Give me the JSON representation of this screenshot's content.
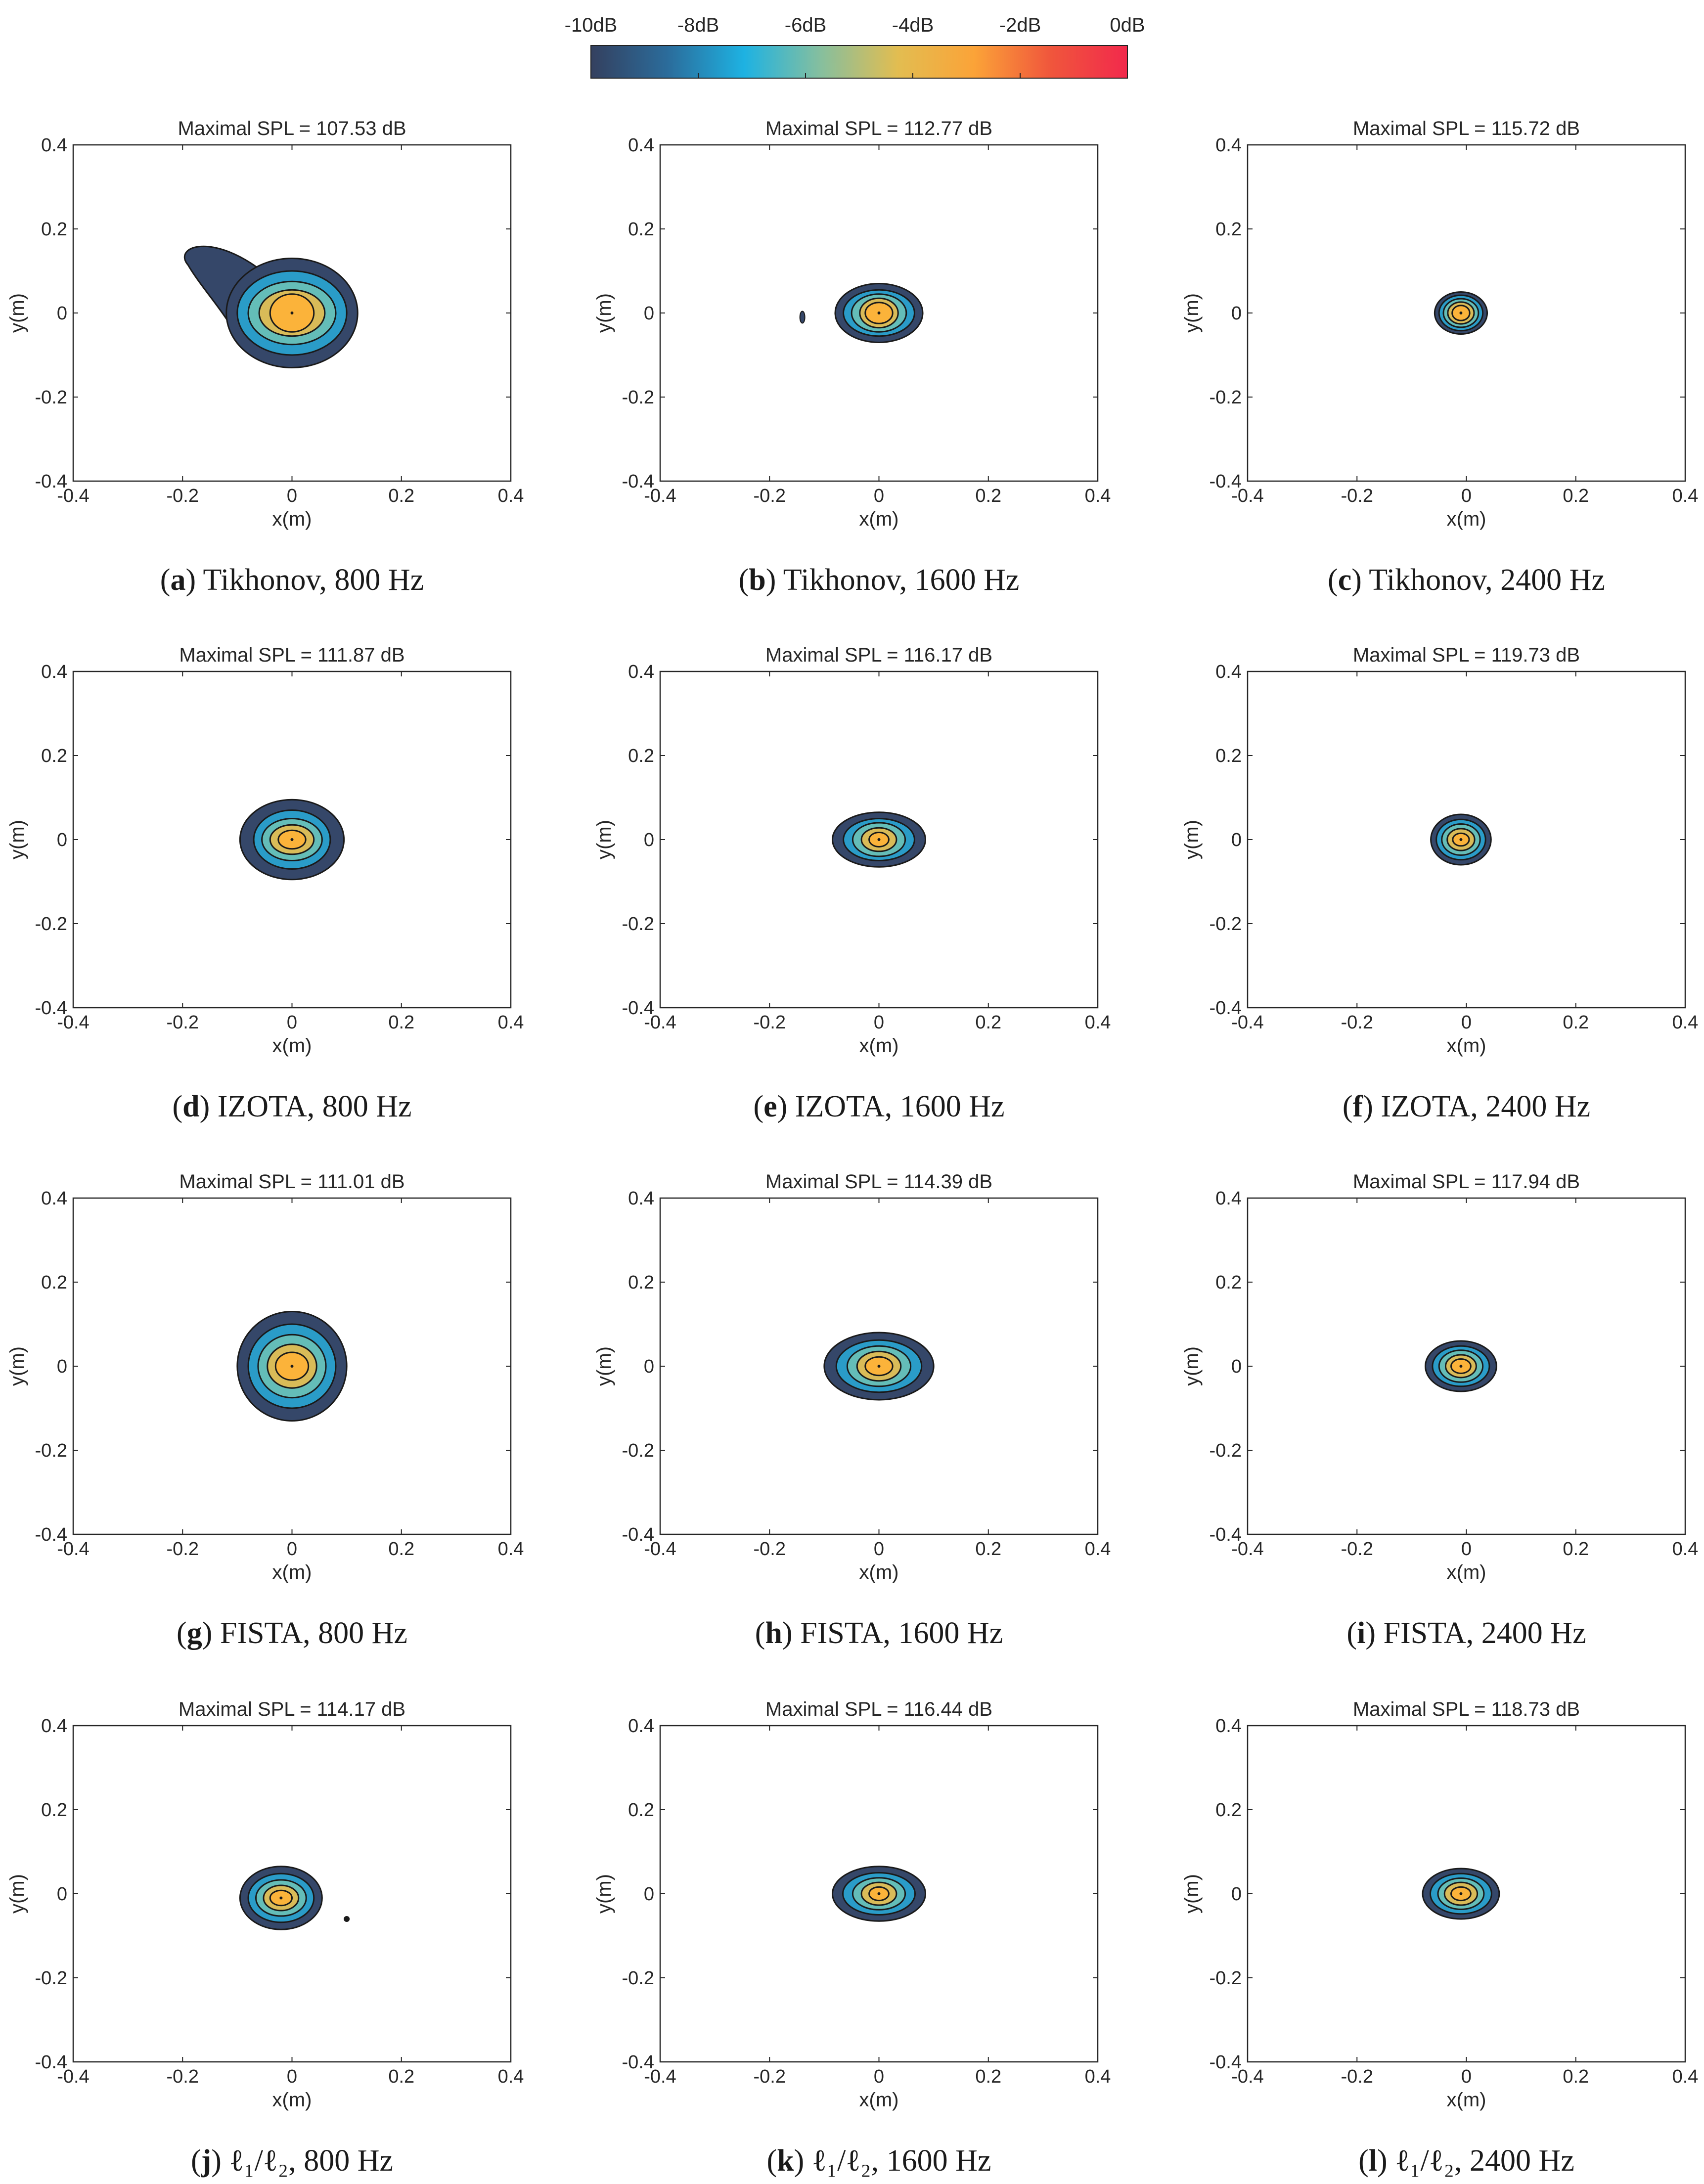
{
  "colorbar": {
    "labels": [
      "-10dB",
      "-8dB",
      "-6dB",
      "-4dB",
      "-2dB",
      "0dB"
    ],
    "range": [
      -10,
      0
    ],
    "colors": [
      "#34405f",
      "#2b6c9b",
      "#1eb2e2",
      "#86bf9e",
      "#e2bd51",
      "#fba338",
      "#f0563c",
      "#f2294c"
    ]
  },
  "level_colors": [
    "#354769",
    "#2a9cc8",
    "#64bdb8",
    "#d9bb58",
    "#fbb33a",
    "#f57045",
    "#ee3a44"
  ],
  "chart_data": [
    {
      "type": "contour",
      "id": "a",
      "title": "Maximal SPL = 107.53 dB",
      "caption_letter": "a",
      "caption_text": " Tikhonov, 800 Hz",
      "xlabel": "x(m)",
      "ylabel": "y(m)",
      "xlim": [
        -0.4,
        0.4
      ],
      "ylim": [
        -0.4,
        0.4
      ],
      "xticks": [
        -0.4,
        -0.2,
        0,
        0.2,
        0.4
      ],
      "yticks": [
        -0.4,
        -0.2,
        0,
        0.2,
        0.4
      ],
      "peak": [
        0,
        0
      ],
      "contour_levels_dB": [
        -10,
        -8,
        -6,
        -4,
        -2
      ],
      "level_half_widths": [
        [
          0.12,
          0.13
        ],
        [
          0.1,
          0.1
        ],
        [
          0.08,
          0.075
        ],
        [
          0.06,
          0.055
        ],
        [
          0.04,
          0.045
        ]
      ],
      "tail_to": [
        -0.19,
        0.12
      ]
    },
    {
      "type": "contour",
      "id": "b",
      "title": "Maximal SPL = 112.77 dB",
      "caption_letter": "b",
      "caption_text": " Tikhonov, 1600 Hz",
      "xlabel": "x(m)",
      "ylabel": "y(m)",
      "xlim": [
        -0.4,
        0.4
      ],
      "ylim": [
        -0.4,
        0.4
      ],
      "xticks": [
        -0.4,
        -0.2,
        0,
        0.2,
        0.4
      ],
      "yticks": [
        -0.4,
        -0.2,
        0,
        0.2,
        0.4
      ],
      "peak": [
        0,
        0
      ],
      "contour_levels_dB": [
        -10,
        -8,
        -6,
        -4,
        -2
      ],
      "level_half_widths": [
        [
          0.08,
          0.07
        ],
        [
          0.065,
          0.055
        ],
        [
          0.05,
          0.045
        ],
        [
          0.035,
          0.035
        ],
        [
          0.025,
          0.025
        ]
      ],
      "speck": [
        -0.14,
        -0.01
      ]
    },
    {
      "type": "contour",
      "id": "c",
      "title": "Maximal SPL = 115.72 dB",
      "caption_letter": "c",
      "caption_text": " Tikhonov, 2400 Hz",
      "xlabel": "x(m)",
      "ylabel": "y(m)",
      "xlim": [
        -0.4,
        0.4
      ],
      "ylim": [
        -0.4,
        0.4
      ],
      "xticks": [
        -0.4,
        -0.2,
        0,
        0.2,
        0.4
      ],
      "yticks": [
        -0.4,
        -0.2,
        0,
        0.2,
        0.4
      ],
      "peak": [
        -0.01,
        0
      ],
      "contour_levels_dB": [
        -10,
        -8,
        -6,
        -4,
        -2
      ],
      "level_half_widths": [
        [
          0.048,
          0.05
        ],
        [
          0.04,
          0.042
        ],
        [
          0.032,
          0.034
        ],
        [
          0.024,
          0.026
        ],
        [
          0.016,
          0.018
        ]
      ]
    },
    {
      "type": "contour",
      "id": "d",
      "title": "Maximal SPL = 111.87 dB",
      "caption_letter": "d",
      "caption_text": " IZOTA, 800 Hz",
      "xlabel": "x(m)",
      "ylabel": "y(m)",
      "xlim": [
        -0.4,
        0.4
      ],
      "ylim": [
        -0.4,
        0.4
      ],
      "xticks": [
        -0.4,
        -0.2,
        0,
        0.2,
        0.4
      ],
      "yticks": [
        -0.4,
        -0.2,
        0,
        0.2,
        0.4
      ],
      "peak": [
        0,
        0
      ],
      "contour_levels_dB": [
        -10,
        -8,
        -6,
        -4,
        -2
      ],
      "level_half_widths": [
        [
          0.095,
          0.095
        ],
        [
          0.07,
          0.07
        ],
        [
          0.055,
          0.05
        ],
        [
          0.04,
          0.035
        ],
        [
          0.025,
          0.022
        ]
      ]
    },
    {
      "type": "contour",
      "id": "e",
      "title": "Maximal SPL = 116.17 dB",
      "caption_letter": "e",
      "caption_text": " IZOTA, 1600 Hz",
      "xlabel": "x(m)",
      "ylabel": "y(m)",
      "xlim": [
        -0.4,
        0.4
      ],
      "ylim": [
        -0.4,
        0.4
      ],
      "xticks": [
        -0.4,
        -0.2,
        0,
        0.2,
        0.4
      ],
      "yticks": [
        -0.4,
        -0.2,
        0,
        0.2,
        0.4
      ],
      "peak": [
        0,
        0
      ],
      "contour_levels_dB": [
        -10,
        -8,
        -6,
        -4,
        -2
      ],
      "level_half_widths": [
        [
          0.085,
          0.065
        ],
        [
          0.065,
          0.05
        ],
        [
          0.048,
          0.04
        ],
        [
          0.032,
          0.028
        ],
        [
          0.018,
          0.017
        ]
      ]
    },
    {
      "type": "contour",
      "id": "f",
      "title": "Maximal SPL = 119.73 dB",
      "caption_letter": "f",
      "caption_text": " IZOTA, 2400 Hz",
      "xlabel": "x(m)",
      "ylabel": "y(m)",
      "xlim": [
        -0.4,
        0.4
      ],
      "ylim": [
        -0.4,
        0.4
      ],
      "xticks": [
        -0.4,
        -0.2,
        0,
        0.2,
        0.4
      ],
      "yticks": [
        -0.4,
        -0.2,
        0,
        0.2,
        0.4
      ],
      "peak": [
        -0.01,
        0
      ],
      "contour_levels_dB": [
        -10,
        -8,
        -6,
        -4,
        -2
      ],
      "level_half_widths": [
        [
          0.055,
          0.06
        ],
        [
          0.045,
          0.048
        ],
        [
          0.035,
          0.037
        ],
        [
          0.025,
          0.026
        ],
        [
          0.015,
          0.015
        ]
      ]
    },
    {
      "type": "contour",
      "id": "g",
      "title": "Maximal SPL = 111.01 dB",
      "caption_letter": "g",
      "caption_text": " FISTA, 800 Hz",
      "xlabel": "x(m)",
      "ylabel": "y(m)",
      "xlim": [
        -0.4,
        0.4
      ],
      "ylim": [
        -0.4,
        0.4
      ],
      "xticks": [
        -0.4,
        -0.2,
        0,
        0.2,
        0.4
      ],
      "yticks": [
        -0.4,
        -0.2,
        0,
        0.2,
        0.4
      ],
      "peak": [
        0,
        0
      ],
      "contour_levels_dB": [
        -10,
        -8,
        -6,
        -4,
        -2
      ],
      "level_half_widths": [
        [
          0.1,
          0.13
        ],
        [
          0.08,
          0.1
        ],
        [
          0.062,
          0.075
        ],
        [
          0.045,
          0.052
        ],
        [
          0.03,
          0.033
        ]
      ]
    },
    {
      "type": "contour",
      "id": "h",
      "title": "Maximal SPL = 114.39 dB",
      "caption_letter": "h",
      "caption_text": " FISTA, 1600 Hz",
      "xlabel": "x(m)",
      "ylabel": "y(m)",
      "xlim": [
        -0.4,
        0.4
      ],
      "ylim": [
        -0.4,
        0.4
      ],
      "xticks": [
        -0.4,
        -0.2,
        0,
        0.2,
        0.4
      ],
      "yticks": [
        -0.4,
        -0.2,
        0,
        0.2,
        0.4
      ],
      "peak": [
        0,
        0
      ],
      "contour_levels_dB": [
        -10,
        -8,
        -6,
        -4,
        -2
      ],
      "level_half_widths": [
        [
          0.1,
          0.08
        ],
        [
          0.078,
          0.062
        ],
        [
          0.058,
          0.048
        ],
        [
          0.04,
          0.035
        ],
        [
          0.025,
          0.022
        ]
      ]
    },
    {
      "type": "contour",
      "id": "i",
      "title": "Maximal SPL = 117.94 dB",
      "caption_letter": "i",
      "caption_text": " FISTA, 2400 Hz",
      "xlabel": "x(m)",
      "ylabel": "y(m)",
      "xlim": [
        -0.4,
        0.4
      ],
      "ylim": [
        -0.4,
        0.4
      ],
      "xticks": [
        -0.4,
        -0.2,
        0,
        0.2,
        0.4
      ],
      "yticks": [
        -0.4,
        -0.2,
        0,
        0.2,
        0.4
      ],
      "peak": [
        -0.01,
        0
      ],
      "contour_levels_dB": [
        -10,
        -8,
        -6,
        -4,
        -2
      ],
      "level_half_widths": [
        [
          0.065,
          0.06
        ],
        [
          0.052,
          0.048
        ],
        [
          0.04,
          0.038
        ],
        [
          0.028,
          0.027
        ],
        [
          0.018,
          0.017
        ]
      ]
    },
    {
      "type": "contour",
      "id": "j",
      "title": "Maximal SPL = 114.17 dB",
      "caption_letter": "j",
      "caption_text": " ℓ₁/ℓ₂, 800 Hz",
      "xlabel": "x(m)",
      "ylabel": "y(m)",
      "xlim": [
        -0.4,
        0.4
      ],
      "ylim": [
        -0.4,
        0.4
      ],
      "xticks": [
        -0.4,
        -0.2,
        0,
        0.2,
        0.4
      ],
      "yticks": [
        -0.4,
        -0.2,
        0,
        0.2,
        0.4
      ],
      "peak": [
        -0.02,
        -0.01
      ],
      "contour_levels_dB": [
        -10,
        -8,
        -6,
        -4,
        -2
      ],
      "level_half_widths": [
        [
          0.075,
          0.075
        ],
        [
          0.06,
          0.058
        ],
        [
          0.046,
          0.043
        ],
        [
          0.032,
          0.03
        ],
        [
          0.02,
          0.018
        ]
      ],
      "speck": [
        0.1,
        -0.06
      ]
    },
    {
      "type": "contour",
      "id": "k",
      "title": "Maximal SPL = 116.44 dB",
      "caption_letter": "k",
      "caption_text": " ℓ₁/ℓ₂, 1600 Hz",
      "xlabel": "x(m)",
      "ylabel": "y(m)",
      "xlim": [
        -0.4,
        0.4
      ],
      "ylim": [
        -0.4,
        0.4
      ],
      "xticks": [
        -0.4,
        -0.2,
        0,
        0.2,
        0.4
      ],
      "yticks": [
        -0.4,
        -0.2,
        0,
        0.2,
        0.4
      ],
      "peak": [
        0,
        0
      ],
      "contour_levels_dB": [
        -10,
        -8,
        -6,
        -4,
        -2
      ],
      "level_half_widths": [
        [
          0.085,
          0.065
        ],
        [
          0.066,
          0.05
        ],
        [
          0.048,
          0.038
        ],
        [
          0.032,
          0.027
        ],
        [
          0.018,
          0.016
        ]
      ]
    },
    {
      "type": "contour",
      "id": "l",
      "title": "Maximal SPL = 118.73 dB",
      "caption_letter": "l",
      "caption_text": " ℓ₁/ℓ₂, 2400 Hz",
      "xlabel": "x(m)",
      "ylabel": "y(m)",
      "xlim": [
        -0.4,
        0.4
      ],
      "ylim": [
        -0.4,
        0.4
      ],
      "xticks": [
        -0.4,
        -0.2,
        0,
        0.2,
        0.4
      ],
      "yticks": [
        -0.4,
        -0.2,
        0,
        0.2,
        0.4
      ],
      "peak": [
        -0.01,
        0
      ],
      "contour_levels_dB": [
        -10,
        -8,
        -6,
        -4,
        -2
      ],
      "level_half_widths": [
        [
          0.07,
          0.06
        ],
        [
          0.056,
          0.048
        ],
        [
          0.042,
          0.037
        ],
        [
          0.03,
          0.027
        ],
        [
          0.018,
          0.016
        ]
      ]
    }
  ]
}
